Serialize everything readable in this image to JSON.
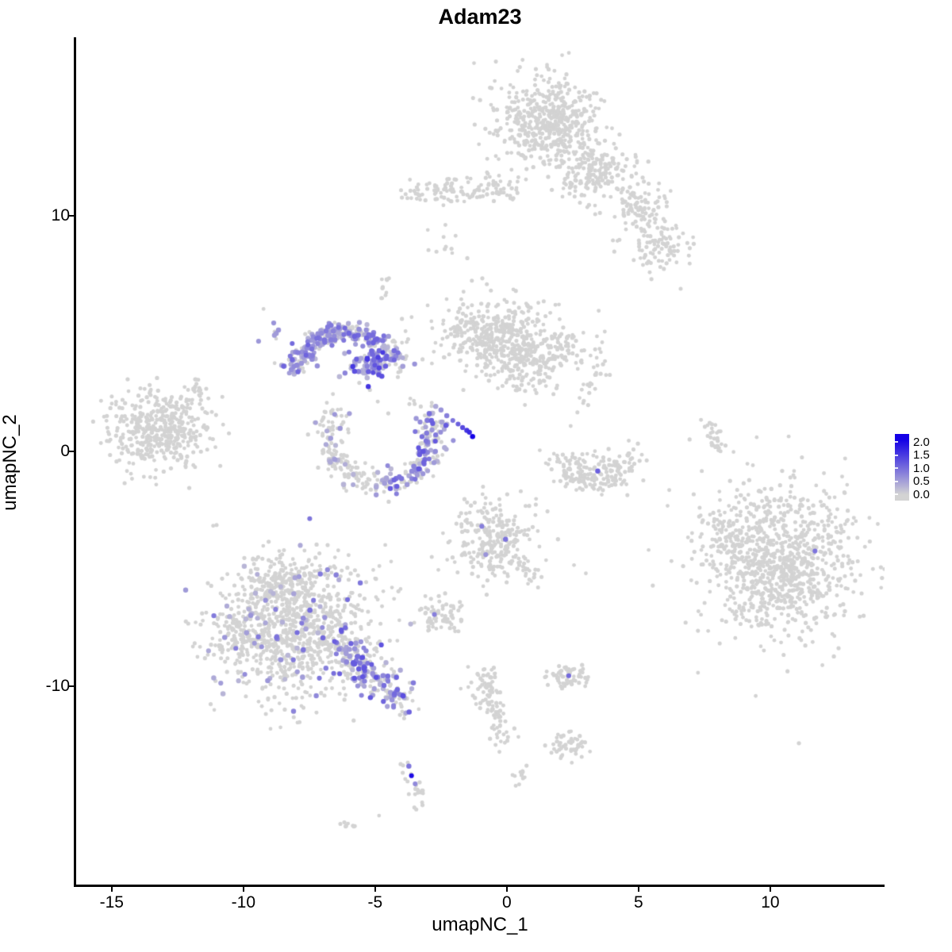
{
  "title": "Adam23",
  "chart_data": {
    "type": "scatter",
    "title": "Adam23",
    "xlabel": "umapNC_1",
    "ylabel": "umapNC_2",
    "x_ticks": [
      -15,
      -10,
      -5,
      0,
      5,
      10
    ],
    "y_ticks": [
      -10,
      0,
      10
    ],
    "xlim": [
      -16.38,
      14.34
    ],
    "ylim": [
      -18.43,
      17.59
    ],
    "grid": false,
    "background": "#ffffff",
    "point_color_low": "#D3D3D3",
    "point_color_high": "#1400E6",
    "legend": {
      "position": "right",
      "ticks": [
        "2.0",
        "1.5",
        "1.0",
        "0.5",
        "0.0"
      ],
      "values": [
        2.0,
        1.5,
        1.0,
        0.5,
        0.0
      ],
      "vmin": 0.0,
      "vmax": 2.0,
      "low_color": "#D3D3D3",
      "high_color": "#1400E6"
    },
    "clusters": [
      {
        "name": "top-main",
        "type": "gauss",
        "cx": 1.6,
        "cy": 14.0,
        "rx": 1.0,
        "ry": 0.92,
        "n": 520,
        "frac": 0
      },
      {
        "name": "top-main-lobe",
        "type": "gauss",
        "cx": 2.9,
        "cy": 11.6,
        "rx": 0.55,
        "ry": 0.6,
        "n": 90,
        "frac": 0
      },
      {
        "name": "top-band",
        "type": "streak",
        "x1": -3.7,
        "y1": 11.0,
        "x2": 0.3,
        "y2": 11.2,
        "th": 0.3,
        "n": 130,
        "frac": 0
      },
      {
        "name": "band-below-dots",
        "type": "gauss",
        "cx": -2.6,
        "cy": 8.9,
        "rx": 0.35,
        "ry": 0.5,
        "n": 7,
        "frac": 0
      },
      {
        "name": "band-mid-dots",
        "type": "dots",
        "pts": [
          [
            -2.4,
            9.1,
            0
          ],
          [
            -2.1,
            8.6,
            0
          ],
          [
            -1.5,
            8.2,
            0
          ],
          [
            -3.0,
            9.4,
            0
          ]
        ]
      },
      {
        "name": "tr-arm-1",
        "type": "gauss",
        "cx": 3.7,
        "cy": 12.2,
        "rx": 0.55,
        "ry": 0.5,
        "n": 80,
        "frac": 0
      },
      {
        "name": "tr-arm-2",
        "type": "gauss",
        "cx": 5.1,
        "cy": 10.4,
        "rx": 0.6,
        "ry": 0.55,
        "n": 95,
        "frac": 0
      },
      {
        "name": "tr-arm-3",
        "type": "gauss",
        "cx": 5.8,
        "cy": 8.7,
        "rx": 0.55,
        "ry": 0.5,
        "n": 80,
        "frac": 0
      },
      {
        "name": "tr-connector",
        "type": "streak",
        "x1": 3.7,
        "y1": 12.0,
        "x2": 5.9,
        "y2": 8.9,
        "th": 0.35,
        "n": 20,
        "frac": 0
      },
      {
        "name": "lone-dot-tr",
        "type": "dots",
        "pts": [
          [
            6.6,
            6.9,
            0
          ]
        ]
      },
      {
        "name": "far-left",
        "type": "gauss",
        "cx": -13.25,
        "cy": 0.9,
        "rx": 0.95,
        "ry": 0.8,
        "n": 430,
        "frac": 0
      },
      {
        "name": "far-left-tail",
        "type": "streak",
        "x1": -12.3,
        "y1": 1.9,
        "x2": -11.4,
        "y2": 2.8,
        "th": 0.2,
        "n": 25,
        "frac": 0
      },
      {
        "name": "far-left-satellites",
        "type": "dots",
        "pts": [
          [
            -10.8,
            2.3,
            0
          ],
          [
            -10.55,
            0.75,
            0
          ],
          [
            -11.9,
            -0.6,
            0
          ],
          [
            -12.1,
            2.6,
            0
          ]
        ]
      },
      {
        "name": "crescent",
        "type": "arc",
        "cx": -6.1,
        "cy": 2.9,
        "rx": 2.0,
        "ry": 2.2,
        "a0": 170,
        "a1": 28,
        "th": 0.22,
        "n": 300,
        "frac": 0.62,
        "vmax": 1.1
      },
      {
        "name": "crescent-blob",
        "type": "gauss",
        "cx": -5.3,
        "cy": 3.7,
        "rx": 0.38,
        "ry": 0.34,
        "n": 70,
        "frac": 0.85,
        "vmax": 1.5
      },
      {
        "name": "crescent-outskirt",
        "type": "gauss",
        "cx": -8.85,
        "cy": 4.8,
        "rx": 0.3,
        "ry": 0.45,
        "n": 9,
        "frac": 0.3,
        "vmax": 0.6
      },
      {
        "name": "crescent-east-dots",
        "type": "dots",
        "pts": [
          [
            -3.5,
            3.7,
            0.6
          ],
          [
            -3.95,
            3.6,
            0.5
          ],
          [
            -3.2,
            3.9,
            0
          ]
        ]
      },
      {
        "name": "mid-gray-main",
        "type": "gauss",
        "cx": -0.2,
        "cy": 4.8,
        "rx": 1.05,
        "ry": 0.85,
        "n": 400,
        "frac": 0
      },
      {
        "name": "mid-gray-lobe-b",
        "type": "gauss",
        "cx": 0.9,
        "cy": 3.5,
        "rx": 0.6,
        "ry": 0.5,
        "n": 90,
        "frac": 0
      },
      {
        "name": "mid-gray-lobe-r",
        "type": "gauss",
        "cx": 2.3,
        "cy": 4.3,
        "rx": 0.5,
        "ry": 0.4,
        "n": 70,
        "frac": 0
      },
      {
        "name": "mid-gray-arm-l",
        "type": "streak",
        "x1": -2.0,
        "y1": 5.3,
        "x2": -0.8,
        "y2": 4.9,
        "th": 0.3,
        "n": 40,
        "frac": 0
      },
      {
        "name": "u-left",
        "type": "arc",
        "cx": -4.8,
        "cy": 0.6,
        "rx": 1.95,
        "ry": 2.0,
        "a0": 148,
        "a1": 268,
        "th": 0.28,
        "n": 150,
        "frac": 0.07,
        "vmax": 0.6
      },
      {
        "name": "u-right",
        "type": "arc",
        "cx": -4.8,
        "cy": 0.6,
        "rx": 1.95,
        "ry": 2.0,
        "a0": 268,
        "a1": 395,
        "th": 0.28,
        "n": 190,
        "frac": 0.45,
        "vmax": 1.2
      },
      {
        "name": "u-strand-up",
        "type": "streak",
        "x1": -4.1,
        "y1": 3.1,
        "x2": -3.8,
        "y2": 5.4,
        "th": 0.2,
        "n": 14,
        "frac": 0.1,
        "vmax": 0.5
      },
      {
        "name": "strand-north",
        "type": "streak",
        "x1": -4.65,
        "y1": 7.4,
        "x2": -4.6,
        "y2": 6.4,
        "th": 0.12,
        "n": 10,
        "frac": 0
      },
      {
        "name": "u-connector-dots",
        "type": "dots",
        "pts": [
          [
            -5.2,
            2.6,
            0
          ],
          [
            -4.9,
            2.1,
            0
          ],
          [
            -4.5,
            1.6,
            0
          ],
          [
            -5.6,
            2.9,
            0
          ]
        ]
      },
      {
        "name": "blue-streak",
        "type": "dots",
        "pts": [
          [
            -2.85,
            2.05,
            0
          ],
          [
            -2.7,
            1.9,
            0.4
          ],
          [
            -2.5,
            1.75,
            0.6
          ],
          [
            -2.28,
            1.5,
            0.8
          ],
          [
            -2.05,
            1.3,
            0.9
          ],
          [
            -1.85,
            1.15,
            1.1
          ],
          [
            -1.68,
            1.0,
            1.3
          ],
          [
            -1.52,
            0.88,
            1.5
          ],
          [
            -1.42,
            0.8,
            1.6
          ],
          [
            -1.3,
            0.62,
            2.0
          ]
        ]
      },
      {
        "name": "smile-right",
        "type": "arc",
        "cx": 3.3,
        "cy": 0.45,
        "rx": 1.6,
        "ry": 1.7,
        "a0": 204,
        "a1": 338,
        "th": 0.3,
        "n": 150,
        "frac": 0
      },
      {
        "name": "smile-fill",
        "type": "gauss",
        "cx": 3.3,
        "cy": -0.5,
        "rx": 0.7,
        "ry": 0.4,
        "n": 40,
        "frac": 0
      },
      {
        "name": "smile-strand",
        "type": "streak",
        "x1": 2.5,
        "y1": 1.3,
        "x2": 3.6,
        "y2": 4.0,
        "th": 0.25,
        "n": 26,
        "frac": 0
      },
      {
        "name": "right-streak",
        "type": "streak",
        "x1": 7.6,
        "y1": 1.4,
        "x2": 8.15,
        "y2": -0.1,
        "th": 0.15,
        "n": 30,
        "frac": 0
      },
      {
        "name": "bottom-right-main",
        "type": "gauss",
        "cx": 10.4,
        "cy": -4.7,
        "rx": 1.5,
        "ry": 1.6,
        "n": 950,
        "frac": 0
      },
      {
        "name": "bottom-right-edge",
        "type": "gauss",
        "cx": 8.4,
        "cy": -3.4,
        "rx": 0.5,
        "ry": 0.6,
        "n": 60,
        "frac": 0
      },
      {
        "name": "center-small",
        "type": "gauss",
        "cx": -0.45,
        "cy": -3.6,
        "rx": 0.8,
        "ry": 0.85,
        "n": 250,
        "frac": 0
      },
      {
        "name": "center-small-tail",
        "type": "streak",
        "x1": 0.4,
        "y1": -4.6,
        "x2": 1.2,
        "y2": -5.6,
        "th": 0.2,
        "n": 25,
        "frac": 0
      },
      {
        "name": "center-dots-right",
        "type": "dots",
        "pts": [
          [
            2.55,
            -4.85,
            0
          ],
          [
            3.0,
            -5.2,
            0
          ]
        ]
      },
      {
        "name": "center-dots-left",
        "type": "dots",
        "pts": [
          [
            -2.85,
            -4.5,
            0
          ],
          [
            -2.6,
            -5.05,
            0
          ]
        ]
      },
      {
        "name": "small-left",
        "type": "gauss",
        "cx": -2.5,
        "cy": -6.95,
        "rx": 0.45,
        "ry": 0.35,
        "n": 70,
        "frac": 0
      },
      {
        "name": "bottom-left-main",
        "type": "gauss",
        "cx": -8.1,
        "cy": -7.6,
        "rx": 1.5,
        "ry": 1.4,
        "n": 900,
        "frac": 0.09,
        "vmax": 1.0
      },
      {
        "name": "bottom-left-top-lobe",
        "type": "gauss",
        "cx": -8.6,
        "cy": -5.7,
        "rx": 0.8,
        "ry": 0.6,
        "n": 180,
        "frac": 0.02,
        "vmax": 0.5
      },
      {
        "name": "bottom-left-west-edge",
        "type": "gauss",
        "cx": -10.3,
        "cy": -7.9,
        "rx": 0.5,
        "ry": 0.65,
        "n": 70,
        "frac": 0.04,
        "vmax": 0.6
      },
      {
        "name": "bottom-left-tail",
        "type": "streak",
        "x1": -6.4,
        "y1": -8.3,
        "x2": -3.95,
        "y2": -10.75,
        "th": 0.4,
        "n": 210,
        "frac": 0.5,
        "vmax": 1.25
      },
      {
        "name": "small-tail-right",
        "type": "gauss",
        "cx": 2.35,
        "cy": -9.55,
        "rx": 0.42,
        "ry": 0.26,
        "n": 65,
        "frac": 0
      },
      {
        "name": "center-streak",
        "type": "streak",
        "x1": -0.95,
        "y1": -9.3,
        "x2": -0.1,
        "y2": -12.3,
        "th": 0.22,
        "n": 100,
        "frac": 0
      },
      {
        "name": "streak-dot-left",
        "type": "dots",
        "pts": [
          [
            -1.75,
            -10.1,
            0
          ]
        ]
      },
      {
        "name": "blob-south",
        "type": "gauss",
        "cx": 2.3,
        "cy": -12.55,
        "rx": 0.38,
        "ry": 0.26,
        "n": 50,
        "frac": 0
      },
      {
        "name": "tiny-oval",
        "type": "gauss",
        "cx": 0.45,
        "cy": -13.85,
        "rx": 0.16,
        "ry": 0.2,
        "n": 13,
        "frac": 0
      },
      {
        "name": "bottom-streak",
        "type": "streak",
        "x1": -3.8,
        "y1": -13.35,
        "x2": -3.35,
        "y2": -15.2,
        "th": 0.18,
        "n": 26,
        "frac": 0
      },
      {
        "name": "tiny-dash",
        "type": "streak",
        "x1": -6.35,
        "y1": -15.75,
        "x2": -5.75,
        "y2": -16.1,
        "th": 0.1,
        "n": 9,
        "frac": 0
      },
      {
        "name": "lone-dot-south",
        "type": "dots",
        "pts": [
          [
            -4.85,
            -15.5,
            0
          ]
        ]
      }
    ],
    "highlight_points": [
      [
        3.45,
        -0.85,
        1.1
      ],
      [
        11.7,
        -4.25,
        0.9
      ],
      [
        2.35,
        -9.55,
        1.0
      ],
      [
        -2.75,
        -6.95,
        0.8
      ],
      [
        -0.95,
        -3.2,
        0.8
      ],
      [
        -0.05,
        -3.75,
        0.9
      ],
      [
        -0.8,
        -4.4,
        0.6
      ],
      [
        -3.72,
        -13.4,
        0.9
      ],
      [
        -3.62,
        -13.8,
        1.9
      ],
      [
        -3.48,
        -14.15,
        0.7
      ]
    ]
  }
}
